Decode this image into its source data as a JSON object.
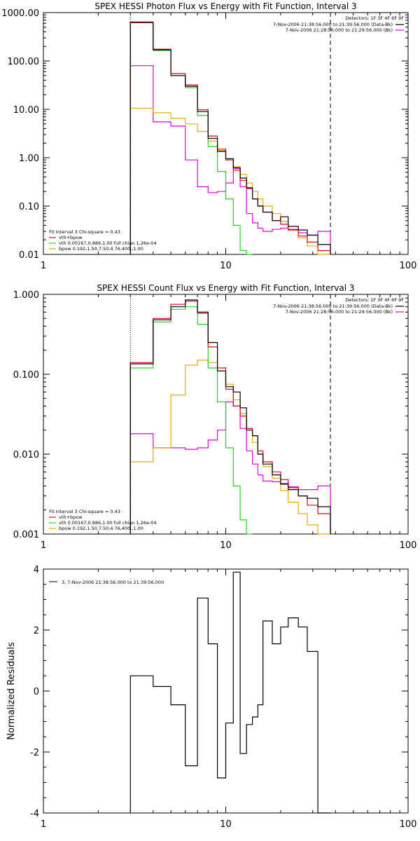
{
  "colors": {
    "data": "#000000",
    "model": "#e8001c",
    "vth": "#22d322",
    "bpow": "#e0b000",
    "bk": "#e000e0"
  },
  "chart_data": [
    {
      "type": "line",
      "title": "SPEX HESSI Photon Flux vs Energy with Fit Function, Interval 3",
      "xscale": "log",
      "yscale": "log",
      "xlim": [
        1,
        100
      ],
      "ylim": [
        0.01,
        1000
      ],
      "xticks": [
        "1",
        "10",
        "100"
      ],
      "yticks": [
        "0.01",
        "0.10",
        "1.00",
        "10.00",
        "100.00",
        "1000.00"
      ],
      "vlines": [
        {
          "x": 3,
          "style": "dotted"
        },
        {
          "x": 37.5,
          "style": "dashed"
        }
      ],
      "legend_top": [
        "Detectors: 1F 3F 4F 6F 9F",
        "7-Nov-2006 21:38:56.000 to 21:39:56.000 (Data-Bk)",
        "7-Nov-2006 21:28:56.000 to 21:29:56.000 (Bk)"
      ],
      "legend_bottom": [
        "Fit Interval 3   Chi-square = 0.43",
        "vth+bpow",
        "vth 0.00167,0.886,1.00   full chian 1.26e-04",
        "bpow 0.192,1.50,7.50,4.76,400.,1.00"
      ],
      "edges": [
        3,
        4,
        5,
        6,
        7,
        8,
        9,
        10,
        11,
        12,
        13,
        14,
        15,
        16,
        18,
        20,
        22,
        25,
        28,
        32,
        37.5
      ],
      "series": [
        {
          "name": "Data-Bk",
          "values": [
            620,
            170,
            50,
            30,
            9,
            2.5,
            1.35,
            0.95,
            0.62,
            0.38,
            0.24,
            0.14,
            0.1,
            0.075,
            0.05,
            0.06,
            0.038,
            0.032,
            0.025,
            0.016
          ]
        },
        {
          "name": "vth+bpow",
          "values": [
            640,
            175,
            55,
            32,
            9.8,
            2.8,
            1.5,
            0.9,
            0.55,
            0.34,
            0.23,
            0.14,
            0.1,
            0.075,
            0.05,
            0.042,
            0.032,
            0.024,
            0.018,
            0.012
          ]
        },
        {
          "name": "vth",
          "values": [
            640,
            165,
            50,
            28,
            7.5,
            1.7,
            0.52,
            0.14,
            0.04,
            0.012,
            0.004
          ]
        },
        {
          "name": "bpow",
          "values": [
            10.5,
            8.5,
            6.5,
            5,
            3.5,
            2.2,
            1.4,
            0.95,
            0.65,
            0.45,
            0.3,
            0.2,
            0.14,
            0.1,
            0.07,
            0.048,
            0.032,
            0.022,
            0.015,
            0.01
          ]
        },
        {
          "name": "Bk",
          "values": [
            80,
            5.5,
            4.5,
            0.9,
            0.25,
            0.19,
            0.2,
            0.3,
            0.6,
            0.25,
            0.07,
            0.045,
            0.035,
            0.03,
            0.033,
            0.035,
            0.033,
            0.028,
            0.025,
            0.03
          ]
        }
      ]
    },
    {
      "type": "line",
      "title": "SPEX HESSI Count Flux vs Energy with Fit Function, Interval 3",
      "xscale": "log",
      "yscale": "log",
      "xlim": [
        1,
        100
      ],
      "ylim": [
        0.001,
        1
      ],
      "xticks": [
        "1",
        "10",
        "100"
      ],
      "yticks": [
        "0.001",
        "0.010",
        "0.100",
        "1.000"
      ],
      "vlines": [
        {
          "x": 3,
          "style": "dotted"
        },
        {
          "x": 37.5,
          "style": "dashed"
        }
      ],
      "legend_top": [
        "Detectors: 1F 3F 4F 6F 9F",
        "7-Nov-2006 21:38:56.000 to 21:39:56.000 (Data-Bk)",
        "7-Nov-2006 21:28:56.000 to 21:29:56.000 (Bk)"
      ],
      "legend_bottom": [
        "Fit Interval 3   Chi-square = 0.43",
        "vth+bpow",
        "vth 0.00167,0.886,1.00   full chian 1.26e-04",
        "bpow 0.192,1.50,7.50,4.76,400.,1.00"
      ],
      "edges": [
        3,
        4,
        5,
        6,
        7,
        8,
        9,
        10,
        11,
        12,
        13,
        14,
        15,
        16,
        18,
        20,
        22,
        25,
        28,
        32,
        37.5
      ],
      "series": [
        {
          "name": "Data-Bk",
          "values": [
            0.135,
            0.48,
            0.7,
            0.85,
            0.6,
            0.25,
            0.11,
            0.07,
            0.06,
            0.038,
            0.02,
            0.017,
            0.01,
            0.0075,
            0.0055,
            0.0042,
            0.0036,
            0.003,
            0.0028,
            0.0022
          ]
        },
        {
          "name": "vth+bpow",
          "values": [
            0.14,
            0.5,
            0.75,
            0.82,
            0.58,
            0.22,
            0.12,
            0.065,
            0.04,
            0.03,
            0.021,
            0.017,
            0.011,
            0.008,
            0.006,
            0.0048,
            0.0038,
            0.003,
            0.0023,
            0.0018
          ]
        },
        {
          "name": "vth",
          "values": [
            0.12,
            0.45,
            0.65,
            0.7,
            0.42,
            0.12,
            0.045,
            0.012,
            0.004,
            0.0015,
            0.0006
          ]
        },
        {
          "name": "bpow",
          "values": [
            0.008,
            0.012,
            0.055,
            0.13,
            0.15,
            0.14,
            0.11,
            0.075,
            0.048,
            0.032,
            0.021,
            0.014,
            0.01,
            0.007,
            0.005,
            0.0035,
            0.0025,
            0.0018,
            0.0013,
            0.0009
          ]
        },
        {
          "name": "Bk",
          "values": [
            0.018,
            0.012,
            0.012,
            0.0115,
            0.012,
            0.015,
            0.02,
            0.045,
            0.04,
            0.021,
            0.011,
            0.0075,
            0.0055,
            0.0046,
            0.0045,
            0.0043,
            0.0039,
            0.0036,
            0.0036,
            0.004
          ]
        }
      ]
    },
    {
      "type": "line",
      "title": "",
      "xscale": "log",
      "yscale": "linear",
      "xlim": [
        1,
        100
      ],
      "ylim": [
        -4,
        4
      ],
      "xticks": [
        "1",
        "10",
        "100"
      ],
      "yticks": [
        "-4",
        "-2",
        "0",
        "2",
        "4"
      ],
      "ylabel": "Normalized Residuals",
      "legend_top": [
        "3,  7-Nov-2006 21:38:56.000 to 21:39:56.000"
      ],
      "edges": [
        3,
        4,
        5,
        6,
        7,
        8,
        9,
        10,
        11,
        12,
        13,
        14,
        15,
        16,
        18,
        20,
        22,
        25,
        28,
        32,
        37.5
      ],
      "series": [
        {
          "name": "3,  7-Nov-2006 21:38:56.000 to 21:39:56.000",
          "values": [
            0.5,
            0.15,
            -0.45,
            -2.45,
            3.05,
            1.55,
            -2.85,
            -1.05,
            3.9,
            -2.05,
            -1.1,
            -0.85,
            -0.45,
            2.3,
            1.55,
            2.1,
            2.4,
            2.1,
            1.3,
            -4.0
          ]
        }
      ]
    }
  ]
}
